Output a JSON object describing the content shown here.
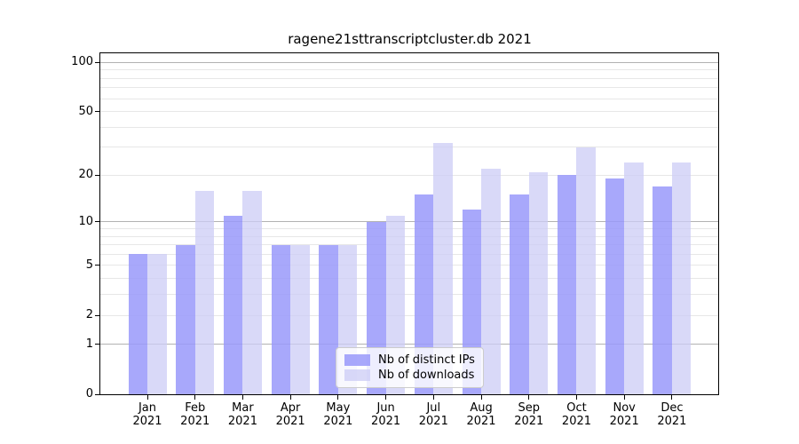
{
  "chart_data": {
    "type": "bar",
    "title": "ragene21sttranscriptcluster.db 2021",
    "x_months": [
      "Jan",
      "Feb",
      "Mar",
      "Apr",
      "May",
      "Jun",
      "Jul",
      "Aug",
      "Sep",
      "Oct",
      "Nov",
      "Dec"
    ],
    "x_year": "2021",
    "categories": [
      "Jan 2021",
      "Feb 2021",
      "Mar 2021",
      "Apr 2021",
      "May 2021",
      "Jun 2021",
      "Jul 2021",
      "Aug 2021",
      "Sep 2021",
      "Oct 2021",
      "Nov 2021",
      "Dec 2021"
    ],
    "series": [
      {
        "name": "Nb of distinct IPs",
        "color": "rgba(153,153,250,0.85)",
        "values": [
          6,
          7,
          11,
          7,
          7,
          10,
          15,
          12,
          15,
          20,
          19,
          17
        ]
      },
      {
        "name": "Nb of downloads",
        "color": "rgba(204,204,246,0.75)",
        "values": [
          6,
          16,
          16,
          7,
          7,
          11,
          32,
          22,
          21,
          30,
          24,
          24
        ]
      }
    ],
    "y_scale": "log10(1+value)",
    "y_ticks": [
      0,
      1,
      2,
      5,
      10,
      20,
      50,
      100
    ],
    "y_major_gridlines": [
      1,
      10,
      100
    ],
    "y_minor_gridlines": [
      2,
      3,
      4,
      5,
      6,
      7,
      8,
      9,
      20,
      30,
      40,
      50,
      60,
      70,
      80,
      90
    ],
    "ylim": [
      0,
      114
    ],
    "grid": true,
    "legend_position": "lower center"
  },
  "colors": {
    "bar_ips": "rgba(153,153,250,0.85)",
    "bar_downloads": "rgba(204,204,246,0.75)",
    "grid_major": "#b2b2b2",
    "grid_minor": "#e7e7e7",
    "axis": "#000000",
    "legend_border": "#cccccc",
    "background": "#ffffff"
  }
}
